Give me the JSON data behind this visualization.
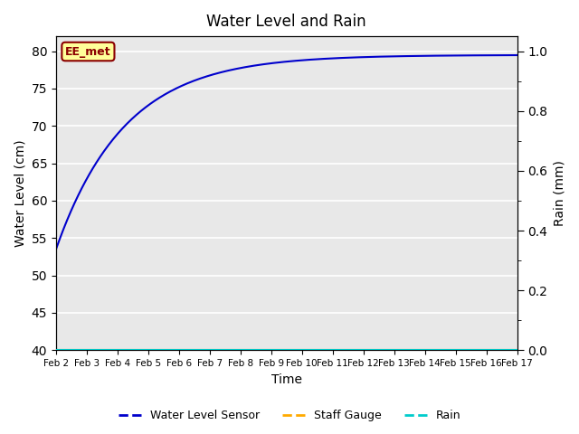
{
  "title": "Water Level and Rain",
  "xlabel": "Time",
  "ylabel_left": "Water Level (cm)",
  "ylabel_right": "Rain (mm)",
  "ylim_left": [
    40,
    82
  ],
  "ylim_right": [
    0.0,
    1.05
  ],
  "yticks_left": [
    40,
    45,
    50,
    55,
    60,
    65,
    70,
    75,
    80
  ],
  "yticks_right": [
    0.0,
    0.2,
    0.4,
    0.6,
    0.8,
    1.0
  ],
  "x_tick_labels": [
    "Feb 2",
    "Feb 3",
    "Feb 4",
    "Feb 5",
    "Feb 6",
    "Feb 7",
    "Feb 8",
    "Feb 9",
    "Feb 10",
    "Feb 11",
    "Feb 12",
    "Feb 13",
    "Feb 14",
    "Feb 15",
    "Feb 16",
    "Feb 17"
  ],
  "water_level_color": "#0000cc",
  "staff_gauge_color": "#ffaa00",
  "rain_color": "#00cccc",
  "watermark_text": "EE_met",
  "watermark_bg": "#ffff99",
  "watermark_border": "#8b0000",
  "legend_labels": [
    "Water Level Sensor",
    "Staff Gauge",
    "Rain"
  ],
  "background_color": "#e8e8e8",
  "grid_color": "white",
  "curve_a": 79.5,
  "curve_b": 26.0,
  "curve_c": 0.45
}
